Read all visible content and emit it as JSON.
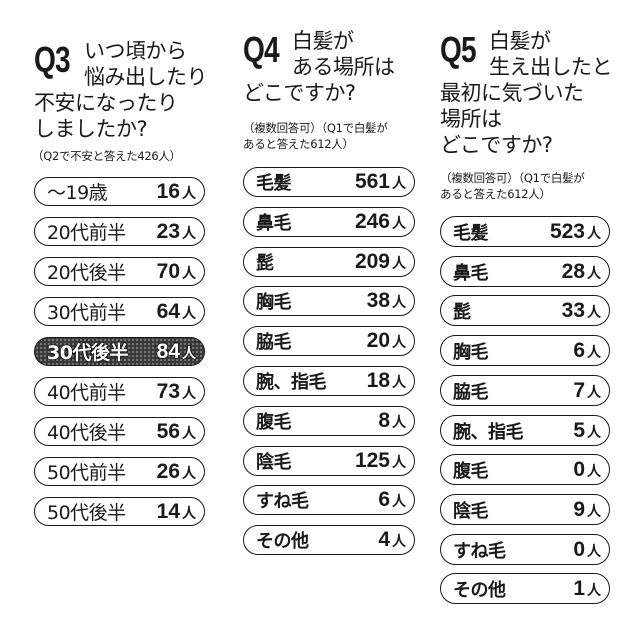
{
  "q3": {
    "number": "Q3",
    "title_lines": [
      "いつ頃から",
      "悩み出したり",
      "不安になったり",
      "しましたか?"
    ],
    "note": "（Q2で不安と答えた426人）",
    "unit": "人",
    "highlight_index": 4,
    "items": [
      {
        "label": "〜19歳",
        "value": "16"
      },
      {
        "label": "20代前半",
        "value": "23"
      },
      {
        "label": "20代後半",
        "value": "70"
      },
      {
        "label": "30代前半",
        "value": "64"
      },
      {
        "label": "30代後半",
        "value": "84"
      },
      {
        "label": "40代前半",
        "value": "73"
      },
      {
        "label": "40代後半",
        "value": "56"
      },
      {
        "label": "50代前半",
        "value": "26"
      },
      {
        "label": "50代後半",
        "value": "14"
      }
    ]
  },
  "q4": {
    "number": "Q4",
    "title_lines": [
      "白髪が",
      "ある場所は",
      "どこですか?"
    ],
    "note_lines": [
      "（複数回答可）（Q1で白髪が",
      "あると答えた612人）"
    ],
    "unit": "人",
    "items": [
      {
        "label": "毛髪",
        "value": "561"
      },
      {
        "label": "鼻毛",
        "value": "246"
      },
      {
        "label": "髭",
        "value": "209"
      },
      {
        "label": "胸毛",
        "value": "38"
      },
      {
        "label": "脇毛",
        "value": "20"
      },
      {
        "label": "腕、指毛",
        "value": "18"
      },
      {
        "label": "腹毛",
        "value": "8"
      },
      {
        "label": "陰毛",
        "value": "125"
      },
      {
        "label": "すね毛",
        "value": "6"
      },
      {
        "label": "その他",
        "value": "4"
      }
    ]
  },
  "q5": {
    "number": "Q5",
    "title_lines": [
      "白髪が",
      "生え出したと",
      "最初に気づいた",
      "場所は",
      "どこですか?"
    ],
    "note_lines": [
      "（複数回答可）（Q1で白髪が",
      "あると答えた612人）"
    ],
    "unit": "人",
    "items": [
      {
        "label": "毛髪",
        "value": "523"
      },
      {
        "label": "鼻毛",
        "value": "28"
      },
      {
        "label": "髭",
        "value": "33"
      },
      {
        "label": "胸毛",
        "value": "6"
      },
      {
        "label": "脇毛",
        "value": "7"
      },
      {
        "label": "腕、指毛",
        "value": "5"
      },
      {
        "label": "腹毛",
        "value": "0"
      },
      {
        "label": "陰毛",
        "value": "9"
      },
      {
        "label": "すね毛",
        "value": "0"
      },
      {
        "label": "その他",
        "value": "1"
      }
    ]
  },
  "chart_data": [
    {
      "type": "table",
      "title": "Q3 いつ頃から悩み出したり不安になったりしましたか?",
      "subtitle": "（Q2で不安と答えた426人）",
      "categories": [
        "〜19歳",
        "20代前半",
        "20代後半",
        "30代前半",
        "30代後半",
        "40代前半",
        "40代後半",
        "50代前半",
        "50代後半"
      ],
      "values": [
        16,
        23,
        70,
        64,
        84,
        73,
        56,
        26,
        14
      ],
      "unit": "人",
      "highlight": "30代後半"
    },
    {
      "type": "table",
      "title": "Q4 白髪がある場所はどこですか?",
      "subtitle": "（複数回答可）（Q1で白髪があると答えた612人）",
      "categories": [
        "毛髪",
        "鼻毛",
        "髭",
        "胸毛",
        "脇毛",
        "腕、指毛",
        "腹毛",
        "陰毛",
        "すね毛",
        "その他"
      ],
      "values": [
        561,
        246,
        209,
        38,
        20,
        18,
        8,
        125,
        6,
        4
      ],
      "unit": "人"
    },
    {
      "type": "table",
      "title": "Q5 白髪が生え出したと最初に気づいた場所はどこですか?",
      "subtitle": "（複数回答可）（Q1で白髪があると答えた612人）",
      "categories": [
        "毛髪",
        "鼻毛",
        "髭",
        "胸毛",
        "脇毛",
        "腕、指毛",
        "腹毛",
        "陰毛",
        "すね毛",
        "その他"
      ],
      "values": [
        523,
        28,
        33,
        6,
        7,
        5,
        0,
        9,
        0,
        1
      ],
      "unit": "人"
    }
  ]
}
